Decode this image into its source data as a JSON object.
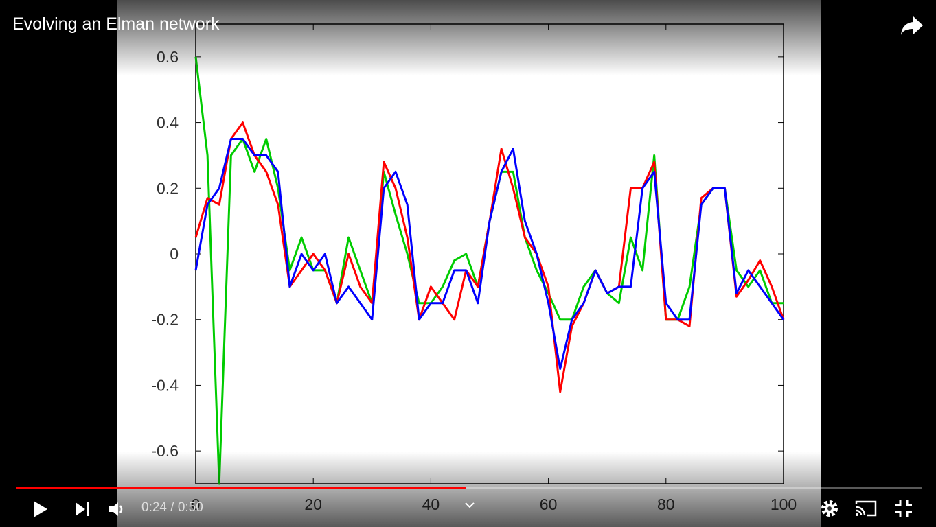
{
  "video": {
    "title": "Evolving an Elman network",
    "time": "0:24 / 0:50"
  },
  "chart_data": {
    "type": "line",
    "x": [
      0,
      2,
      4,
      6,
      8,
      10,
      12,
      14,
      16,
      18,
      20,
      22,
      24,
      26,
      28,
      30,
      32,
      34,
      36,
      38,
      40,
      42,
      44,
      46,
      48,
      50,
      52,
      54,
      56,
      58,
      60,
      62,
      64,
      66,
      68,
      70,
      72,
      74,
      76,
      78,
      80,
      82,
      84,
      86,
      88,
      90,
      92,
      94,
      96,
      98,
      100
    ],
    "series": [
      {
        "color": "#00cc00",
        "values": [
          0.6,
          0.3,
          -0.7,
          0.3,
          0.35,
          0.25,
          0.35,
          0.2,
          -0.05,
          0.05,
          -0.05,
          -0.05,
          -0.15,
          0.05,
          -0.05,
          -0.15,
          0.25,
          0.12,
          0,
          -0.15,
          -0.15,
          -0.1,
          -0.02,
          0,
          -0.1,
          0.1,
          0.25,
          0.25,
          0.05,
          -0.05,
          -0.12,
          -0.2,
          -0.2,
          -0.1,
          -0.05,
          -0.12,
          -0.15,
          0.05,
          -0.05,
          0.3,
          -0.2,
          -0.2,
          -0.1,
          0.15,
          0.2,
          0.2,
          -0.05,
          -0.1,
          -0.05,
          -0.15,
          -0.15
        ]
      },
      {
        "color": "#ff0000",
        "values": [
          0.05,
          0.17,
          0.15,
          0.35,
          0.4,
          0.3,
          0.25,
          0.15,
          -0.1,
          -0.05,
          0,
          -0.05,
          -0.15,
          0,
          -0.1,
          -0.15,
          0.28,
          0.2,
          0.05,
          -0.2,
          -0.1,
          -0.15,
          -0.2,
          -0.05,
          -0.1,
          0.1,
          0.32,
          0.2,
          0.05,
          0,
          -0.1,
          -0.42,
          -0.22,
          -0.15,
          -0.05,
          -0.12,
          -0.1,
          0.2,
          0.2,
          0.28,
          -0.2,
          -0.2,
          -0.22,
          0.17,
          0.2,
          0.2,
          -0.13,
          -0.08,
          -0.02,
          -0.1,
          -0.2
        ]
      },
      {
        "color": "#0000ff",
        "values": [
          -0.05,
          0.15,
          0.2,
          0.35,
          0.35,
          0.3,
          0.3,
          0.25,
          -0.1,
          0,
          -0.05,
          0,
          -0.15,
          -0.1,
          -0.15,
          -0.2,
          0.2,
          0.25,
          0.15,
          -0.2,
          -0.15,
          -0.15,
          -0.05,
          -0.05,
          -0.15,
          0.1,
          0.25,
          0.32,
          0.1,
          0,
          -0.15,
          -0.35,
          -0.2,
          -0.15,
          -0.05,
          -0.12,
          -0.1,
          -0.1,
          0.2,
          0.25,
          -0.15,
          -0.2,
          -0.2,
          0.15,
          0.2,
          0.2,
          -0.12,
          -0.05,
          -0.1,
          -0.15,
          -0.2
        ]
      }
    ],
    "xlim": [
      0,
      100
    ],
    "xticks": [
      0,
      20,
      40,
      60,
      80,
      100
    ],
    "ylim": [
      -0.7,
      0.7
    ],
    "yticks": [
      0.6,
      0.4,
      0.2,
      0,
      -0.2,
      -0.4,
      -0.6
    ]
  }
}
